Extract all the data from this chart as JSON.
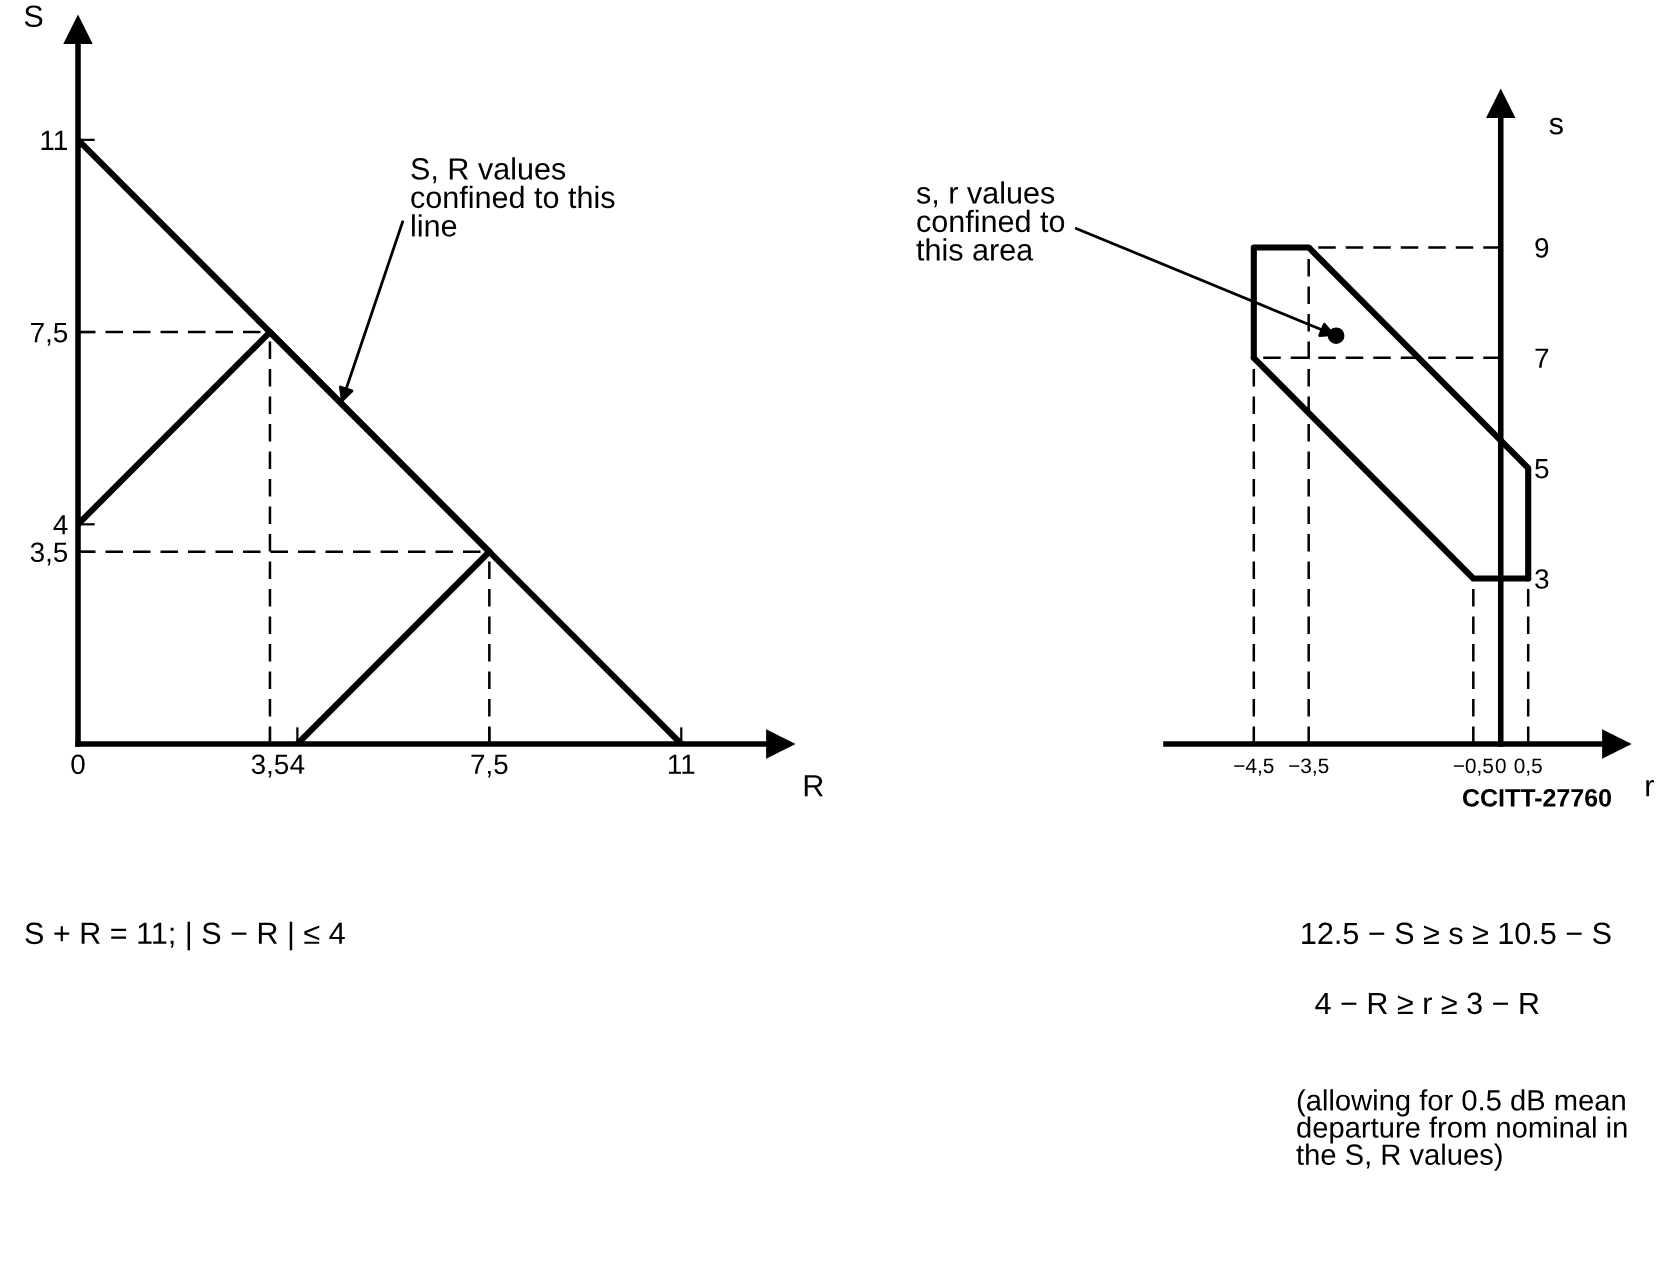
{
  "chart_data": [
    {
      "type": "line",
      "xlabel": "R",
      "ylabel": "S",
      "xlim": [
        0,
        12.8
      ],
      "ylim": [
        0,
        13.0
      ],
      "xticks": [
        0,
        {
          "value": 3.5,
          "label": "3,5"
        },
        4,
        {
          "value": 7.5,
          "label": "7,5"
        },
        11
      ],
      "yticks": [
        {
          "value": 3.5,
          "label": "3,5"
        },
        4,
        {
          "value": 7.5,
          "label": "7,5"
        },
        11
      ],
      "grid": false,
      "marker": "none",
      "series": [
        {
          "x": [
            0,
            11
          ],
          "values": [
            11,
            0
          ],
          "color": "#000000",
          "line_style": "solid"
        },
        {
          "x": [
            3.5,
            7.5
          ],
          "values": [
            7.5,
            3.5
          ],
          "color": "#000000",
          "line_style": "solid"
        },
        {
          "x": [
            0,
            3.5
          ],
          "values": [
            4,
            7.5
          ],
          "color": "#000000",
          "line_style": "solid"
        },
        {
          "x": [
            4,
            7.5
          ],
          "values": [
            0,
            3.5
          ],
          "color": "#000000",
          "line_style": "solid"
        }
      ],
      "ref_lines": [
        {
          "axis": "y",
          "value": 7.5,
          "color": "#000000",
          "line_style": "dashed"
        },
        {
          "axis": "y",
          "value": 3.5,
          "color": "#000000",
          "line_style": "dashed"
        },
        {
          "axis": "x",
          "value": 3.5,
          "color": "#000000",
          "line_style": "dashed"
        },
        {
          "axis": "x",
          "value": 7.5,
          "color": "#000000",
          "line_style": "dashed"
        }
      ],
      "annotations": [
        {
          "text": "S, R values\nconfined to this\nline",
          "x": 4.8,
          "y": 6.2
        },
        "S + R = 11; | S − R | ≤ 4"
      ]
    },
    {
      "type": "line",
      "xlabel": "r",
      "ylabel": "s",
      "xlim": [
        -6.1,
        2.1
      ],
      "ylim": [
        0,
        11.6
      ],
      "xticks": [
        {
          "value": -4.5,
          "label": "−4,5"
        },
        {
          "value": -3.5,
          "label": "−3,5"
        },
        {
          "value": -0.5,
          "label": "−0,5"
        },
        0,
        {
          "value": 0.5,
          "label": "0,5"
        }
      ],
      "yticks": [
        3,
        5,
        7,
        9
      ],
      "grid": false,
      "marker": "none",
      "series": [
        {
          "x": [
            -4.5,
            -4.5,
            -3.5,
            0.5,
            0.5
          ],
          "values": [
            7,
            9,
            9,
            5,
            3
          ],
          "color": "#000000",
          "line_style": "solid"
        },
        {
          "x": [
            -4.5,
            -0.5,
            0.5
          ],
          "values": [
            7,
            3,
            3
          ],
          "color": "#000000",
          "line_style": "solid"
        }
      ],
      "ref_lines": [
        {
          "axis": "y",
          "value": 9,
          "color": "#000000",
          "line_style": "dashed"
        },
        {
          "axis": "y",
          "value": 7,
          "color": "#000000",
          "line_style": "dashed"
        },
        {
          "axis": "x",
          "value": -4.5,
          "color": "#000000",
          "line_style": "dashed"
        },
        {
          "axis": "x",
          "value": -3.5,
          "color": "#000000",
          "line_style": "dashed"
        },
        {
          "axis": "x",
          "value": -0.5,
          "color": "#000000",
          "line_style": "dashed"
        },
        {
          "axis": "x",
          "value": 0.5,
          "color": "#000000",
          "line_style": "dashed"
        }
      ],
      "annotations": [
        {
          "text": "s, r values\nconfined to\nthis area",
          "x": -3.0,
          "y": 7.4
        },
        "CCITT-27760",
        "12.5 − S ≥ s ≥ 10.5 − S",
        "4 − R ≥ r ≥ 3 − R",
        "(allowing for 0.5 dB mean\ndeparture from nominal in\nthe S, R values)"
      ]
    }
  ]
}
